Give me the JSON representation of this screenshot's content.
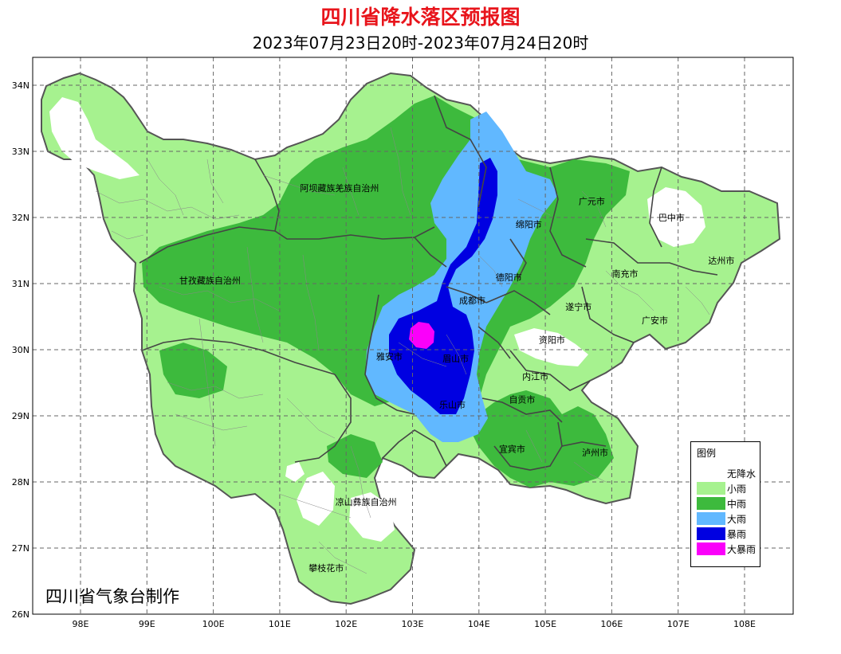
{
  "title": "四川省降水落区预报图",
  "subtitle": "2023年07月23日20时-2023年07月24日20时",
  "credit": "四川省气象台制作",
  "colors": {
    "title": "#e8141b",
    "none": "#ffffff",
    "light": "#a6f28f",
    "moderate": "#3dba3d",
    "heavy": "#61b8ff",
    "rainstorm": "#0000e1",
    "heavy_rainstorm": "#fa00fa",
    "boundary": "#555555"
  },
  "legend": {
    "title": "图例",
    "items": [
      {
        "label": "无降水",
        "color": "#ffffff"
      },
      {
        "label": "小雨",
        "color": "#a6f28f"
      },
      {
        "label": "中雨",
        "color": "#3dba3d"
      },
      {
        "label": "大雨",
        "color": "#61b8ff"
      },
      {
        "label": "暴雨",
        "color": "#0000e1"
      },
      {
        "label": "大暴雨",
        "color": "#fa00fa"
      }
    ]
  },
  "axes": {
    "lon_ticks": [
      "98E",
      "99E",
      "100E",
      "101E",
      "102E",
      "103E",
      "104E",
      "105E",
      "106E",
      "107E",
      "108E"
    ],
    "lat_ticks": [
      "26N",
      "27N",
      "28N",
      "29N",
      "30N",
      "31N",
      "32N",
      "33N",
      "34N"
    ]
  },
  "place_labels": [
    {
      "text": "阿坝藏族羌族自治州",
      "lon": 101.9,
      "lat": 32.4
    },
    {
      "text": "甘孜藏族自治州",
      "lon": 99.95,
      "lat": 31.0
    },
    {
      "text": "广元市",
      "lon": 105.7,
      "lat": 32.2
    },
    {
      "text": "巴中市",
      "lon": 106.9,
      "lat": 31.95
    },
    {
      "text": "绵阳市",
      "lon": 104.75,
      "lat": 31.85
    },
    {
      "text": "达州市",
      "lon": 107.65,
      "lat": 31.3
    },
    {
      "text": "南充市",
      "lon": 106.2,
      "lat": 31.1
    },
    {
      "text": "德阳市",
      "lon": 104.45,
      "lat": 31.05
    },
    {
      "text": "成都市",
      "lon": 103.9,
      "lat": 30.7
    },
    {
      "text": "遂宁市",
      "lon": 105.5,
      "lat": 30.6
    },
    {
      "text": "广安市",
      "lon": 106.65,
      "lat": 30.4
    },
    {
      "text": "资阳市",
      "lon": 105.1,
      "lat": 30.1
    },
    {
      "text": "雅安市",
      "lon": 102.65,
      "lat": 29.85
    },
    {
      "text": "眉山市",
      "lon": 103.65,
      "lat": 29.82
    },
    {
      "text": "内江市",
      "lon": 104.85,
      "lat": 29.55
    },
    {
      "text": "自贡市",
      "lon": 104.65,
      "lat": 29.2
    },
    {
      "text": "乐山市",
      "lon": 103.6,
      "lat": 29.12
    },
    {
      "text": "宜宾市",
      "lon": 104.5,
      "lat": 28.45
    },
    {
      "text": "泸州市",
      "lon": 105.75,
      "lat": 28.4
    },
    {
      "text": "凉山彝族自治州",
      "lon": 102.3,
      "lat": 27.65
    },
    {
      "text": "攀枝花市",
      "lon": 101.7,
      "lat": 26.65
    }
  ]
}
